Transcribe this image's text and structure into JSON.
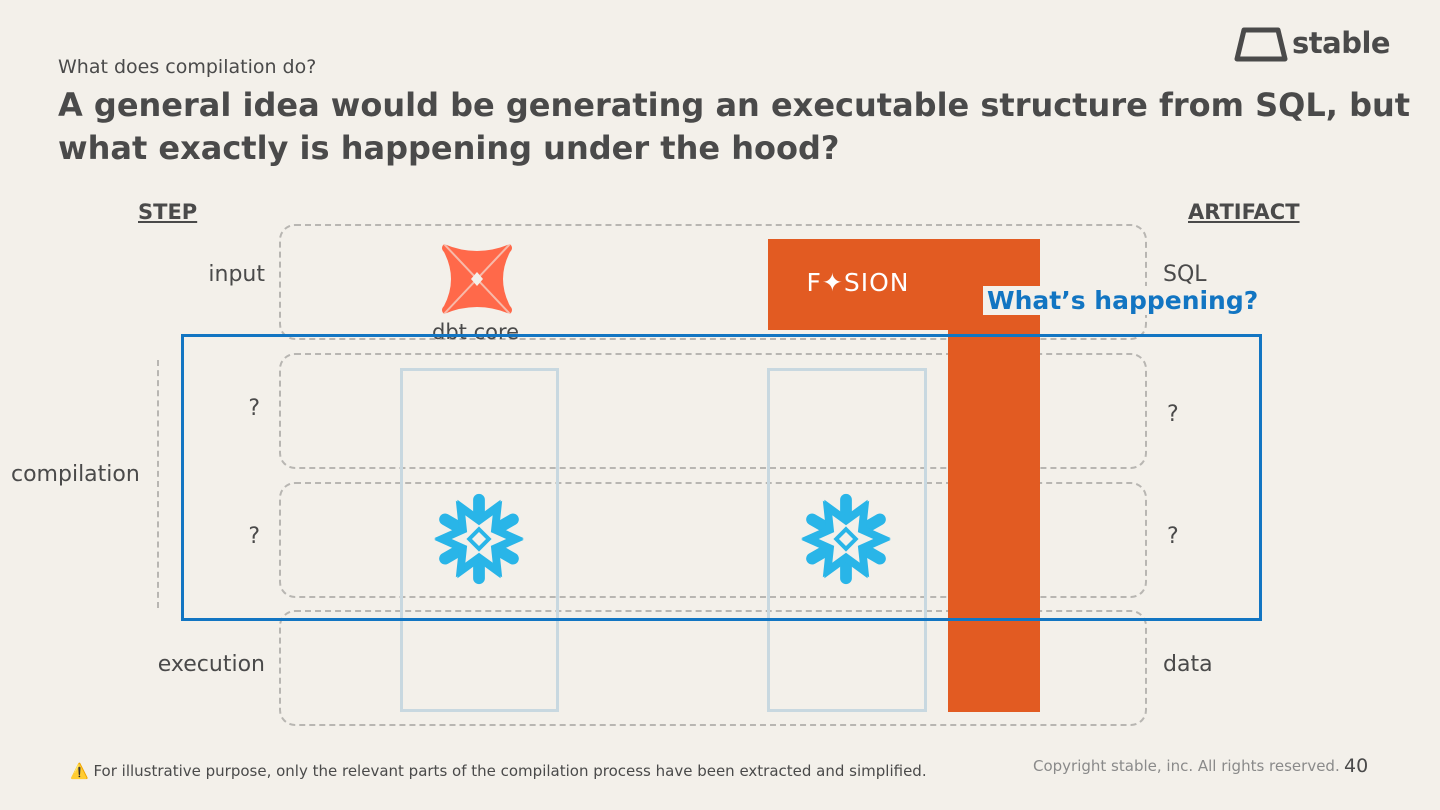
{
  "header": {
    "subtitle": "What does compilation do?",
    "title": "A general idea would be generating an executable structure from SQL, but what exactly is happening under the hood?",
    "logo_text": "stable"
  },
  "columns": {
    "step": "STEP",
    "artifact": "ARTIFACT"
  },
  "rows": {
    "input": {
      "label": "input",
      "artifact": "SQL"
    },
    "compile1": {
      "label": "?",
      "artifact": "?"
    },
    "compile2": {
      "label": "?",
      "artifact": "?"
    },
    "execution": {
      "label": "execution",
      "artifact": "data"
    }
  },
  "group_label": "compilation",
  "tools": {
    "dbt_core": "dbt core",
    "fusion": "F✦SION"
  },
  "callout": "What’s happening?",
  "footer": {
    "footnote": "⚠️ For illustrative purpose, only the relevant parts of the compilation process have been extracted and simplified.",
    "copyright": "Copyright stable, inc. All rights reserved.",
    "page": "40"
  },
  "colors": {
    "background": "#f3f0ea",
    "fusion_orange": "#e25b22",
    "dbt_coral": "#ff694a",
    "snowflake_blue": "#29b5e8",
    "highlight_blue": "#1275c2"
  }
}
